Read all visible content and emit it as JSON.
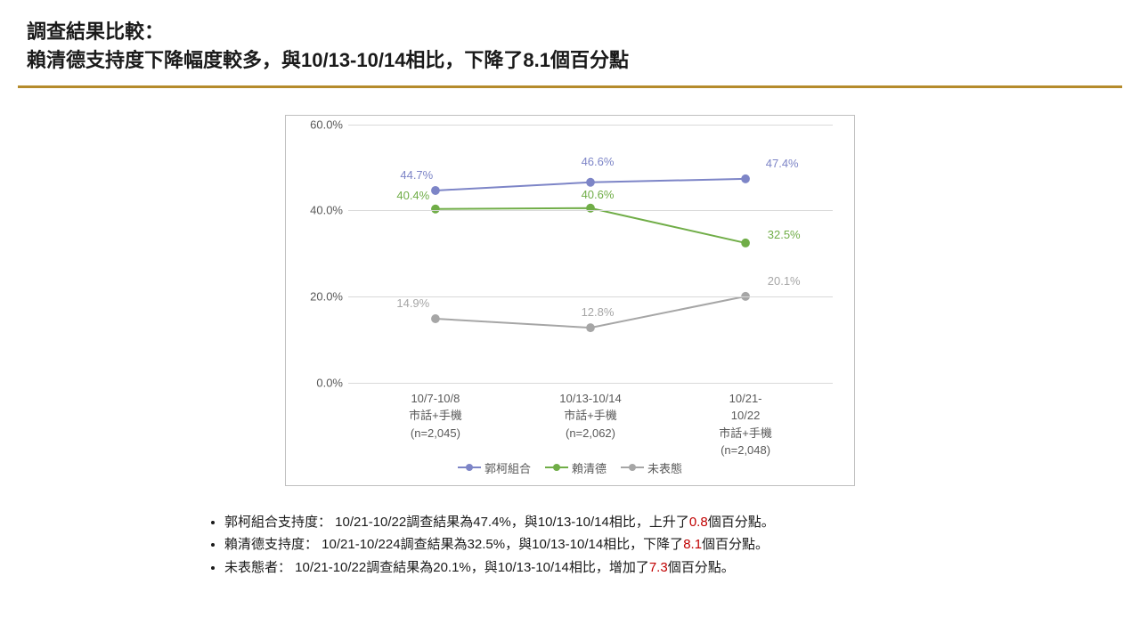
{
  "title_line1": "調查結果比較：",
  "title_line2": "賴清德支持度下降幅度較多，與10/13-10/14相比，下降了8.1個百分點",
  "divider_color": "#b58b2c",
  "chart": {
    "type": "line",
    "border_color": "#bfbfbf",
    "background_color": "#ffffff",
    "axis_color": "#d9d9d9",
    "text_color": "#595959",
    "label_fontsize": 13,
    "ylim": [
      0,
      60
    ],
    "ytick_step": 20,
    "ytick_format_suffix": ".0%",
    "yticks": [
      "0.0%",
      "20.0%",
      "40.0%",
      "60.0%"
    ],
    "grid_color": "#d9d9d9",
    "line_width": 2,
    "marker_radius": 5,
    "x_positions_pct": [
      18,
      50,
      82
    ],
    "categories": [
      {
        "line1": "10/7-10/8",
        "line2": "市話+手機",
        "line3": "(n=2,045)"
      },
      {
        "line1": "10/13-10/14",
        "line2": "市話+手機",
        "line3": "(n=2,062)"
      },
      {
        "line1": "10/21-",
        "line2": "10/22",
        "line3": "市話+手機",
        "line4": "(n=2,048)"
      }
    ],
    "series": [
      {
        "name": "郭柯組合",
        "color": "#7d85c7",
        "values": [
          44.7,
          46.6,
          47.4
        ],
        "labels": [
          "44.7%",
          "46.6%",
          "47.4%"
        ],
        "label_dy": [
          -10,
          -16,
          -10
        ],
        "label_dx": [
          -24,
          0,
          28
        ]
      },
      {
        "name": "賴清德",
        "color": "#70ad47",
        "values": [
          40.4,
          40.6,
          32.5
        ],
        "labels": [
          "40.4%",
          "40.6%",
          "32.5%"
        ],
        "label_dy": [
          -8,
          -8,
          -2
        ],
        "label_dx": [
          -28,
          0,
          30
        ]
      },
      {
        "name": "未表態",
        "color": "#a6a6a6",
        "values": [
          14.9,
          12.8,
          20.1
        ],
        "labels": [
          "14.9%",
          "12.8%",
          "20.1%"
        ],
        "label_dy": [
          -10,
          -10,
          -10
        ],
        "label_dx": [
          -28,
          0,
          30
        ]
      }
    ]
  },
  "bullets": [
    {
      "pre": "郭柯組合支持度： 10/21-10/22調查結果為47.4%，與10/13-10/14相比，上升了",
      "hl": "0.8",
      "post": "個百分點。"
    },
    {
      "pre": "賴清德支持度： 10/21-10/224調查結果為32.5%，與10/13-10/14相比，下降了",
      "hl": "8.1",
      "post": "個百分點。"
    },
    {
      "pre": "未表態者： 10/21-10/22調查結果為20.1%，與10/13-10/14相比，增加了",
      "hl": "7.3",
      "post": "個百分點。"
    }
  ]
}
